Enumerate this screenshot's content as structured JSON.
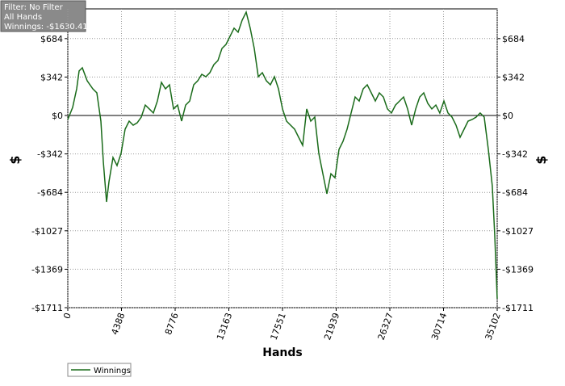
{
  "chart_data": {
    "type": "line",
    "annotations": [
      "Filter: No Filter",
      "All Hands",
      "Winnings: -$1630.41"
    ],
    "xlabel": "Hands",
    "ylabel": "$",
    "xlim": [
      0,
      35102
    ],
    "ylim": [
      -1711,
      949
    ],
    "xticks": [
      0,
      4388,
      8776,
      13163,
      17551,
      21939,
      26327,
      30714,
      35102
    ],
    "yticks": [
      {
        "value": 684.4,
        "label": "$684"
      },
      {
        "value": 342.2,
        "label": "$342"
      },
      {
        "value": 0,
        "label": "$0"
      },
      {
        "value": -342.2,
        "label": "-$342"
      },
      {
        "value": -684.4,
        "label": "-$684"
      },
      {
        "value": -1026.6,
        "label": "-$1027"
      },
      {
        "value": -1368.8,
        "label": "-$1369"
      },
      {
        "value": -1711,
        "label": "-$1711"
      }
    ],
    "grid": true,
    "legend": "bottom-left",
    "x": [
      0,
      396,
      726,
      924,
      1188,
      1584,
      2045,
      2375,
      2705,
      2903,
      3167,
      3365,
      3695,
      4025,
      4355,
      4685,
      5015,
      5345,
      5675,
      6004,
      6334,
      6664,
      6994,
      7324,
      7654,
      7984,
      8313,
      8643,
      8973,
      9303,
      9633,
      9963,
      10293,
      10623,
      10953,
      11282,
      11612,
      11942,
      12272,
      12602,
      12932,
      13262,
      13592,
      13921,
      14251,
      14581,
      14911,
      15241,
      15571,
      15901,
      16231,
      16560,
      16890,
      17220,
      17550,
      17880,
      18210,
      18540,
      18869,
      19199,
      19529,
      19859,
      20189,
      20519,
      20849,
      21178,
      21508,
      21838,
      22168,
      22498,
      22828,
      23158,
      23487,
      23817,
      24147,
      24477,
      24807,
      25137,
      25467,
      25796,
      26126,
      26456,
      26786,
      27116,
      27446,
      27776,
      28105,
      28435,
      28765,
      29095,
      29425,
      29755,
      30085,
      30414,
      30744,
      31074,
      31404,
      31734,
      32064,
      32394,
      32723,
      33053,
      33383,
      33713,
      34043,
      34373,
      34702,
      34900,
      35102
    ],
    "series": [
      {
        "name": "Winnings",
        "color": "#1a6b1a",
        "values": [
          -36,
          72,
          237,
          396,
          424,
          309,
          237,
          201,
          -50,
          -410,
          -769,
          -590,
          -374,
          -446,
          -338,
          -122,
          -50,
          -86,
          -65,
          -14,
          93,
          58,
          22,
          129,
          295,
          237,
          273,
          58,
          93,
          -50,
          93,
          129,
          273,
          309,
          367,
          345,
          381,
          453,
          489,
          597,
          633,
          705,
          777,
          741,
          848,
          920,
          777,
          597,
          345,
          381,
          309,
          273,
          345,
          237,
          58,
          -50,
          -86,
          -122,
          -194,
          -266,
          58,
          -50,
          -14,
          -338,
          -518,
          -697,
          -518,
          -554,
          -302,
          -230,
          -122,
          22,
          165,
          129,
          237,
          273,
          201,
          129,
          201,
          165,
          58,
          22,
          93,
          129,
          165,
          58,
          -86,
          58,
          165,
          201,
          108,
          58,
          93,
          22,
          129,
          22,
          -14,
          -86,
          -194,
          -122,
          -50,
          -36,
          -14,
          22,
          -14,
          -302,
          -626,
          -1057,
          -1630.41
        ]
      }
    ]
  }
}
